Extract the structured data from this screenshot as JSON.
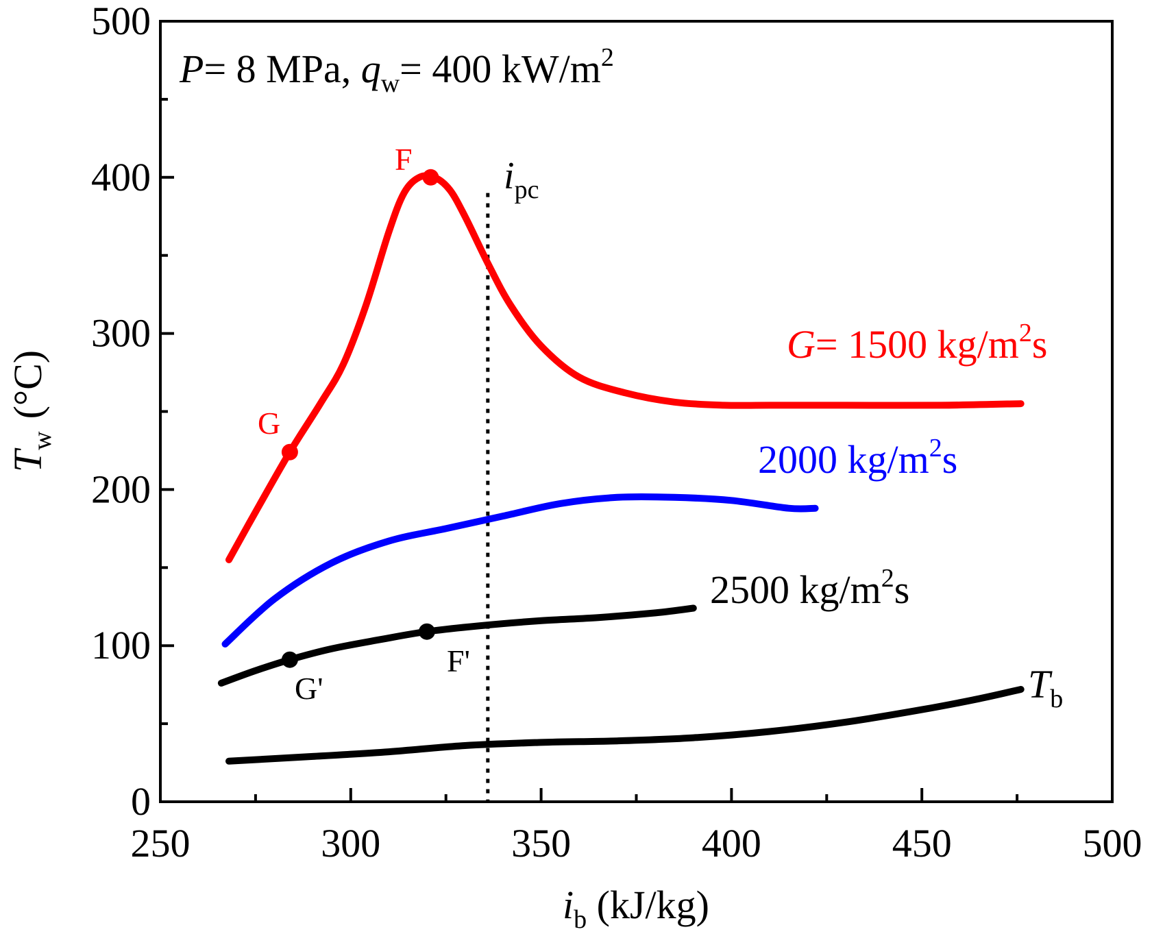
{
  "chart_data": {
    "type": "line",
    "title": "",
    "condition": {
      "p_sym": "P",
      "p_text": "= 8 MPa, ",
      "q_sym": "q",
      "q_sub": "w",
      "q_text": "= 400 kW/m",
      "q_sup": "2"
    },
    "xlabel": {
      "sym": "i",
      "sub": "b",
      "unit": " (kJ/kg)"
    },
    "ylabel": {
      "sym": "T",
      "sub": "w",
      "unit": "(°C)"
    },
    "xlim": [
      250,
      500
    ],
    "ylim": [
      0,
      500
    ],
    "x_ticks": [
      "250",
      "300",
      "350",
      "400",
      "450",
      "500"
    ],
    "y_ticks": [
      "0",
      "100",
      "200",
      "300",
      "400",
      "500"
    ],
    "ipc": {
      "x": 336,
      "sym": "i",
      "sub": "pc"
    },
    "series": [
      {
        "name": "G= 1500 kg/m2s",
        "label_sym": "G",
        "label_text": "= 1500 kg/m",
        "label_sup": "2",
        "label_tail": "s",
        "color": "#ff0000",
        "x": [
          268,
          276,
          284,
          292,
          298,
          304,
          310,
          314,
          318,
          322,
          326,
          330,
          336,
          342,
          350,
          360,
          372,
          385,
          398,
          410,
          430,
          455,
          476
        ],
        "y": [
          155,
          190,
          224,
          255,
          280,
          318,
          365,
          390,
          400,
          400,
          392,
          375,
          345,
          318,
          292,
          272,
          262,
          256,
          254,
          254,
          254,
          254,
          255
        ]
      },
      {
        "name": "2000 kg/m2s",
        "label_text": "2000 kg/m",
        "label_sup": "2",
        "label_tail": "s",
        "color": "#0000ff",
        "x": [
          267,
          280,
          295,
          310,
          325,
          340,
          355,
          370,
          385,
          400,
          415,
          422
        ],
        "y": [
          101,
          130,
          153,
          167,
          175,
          183,
          191,
          195,
          195,
          193,
          188,
          188
        ]
      },
      {
        "name": "2500 kg/m2s",
        "label_text": "2500 kg/m",
        "label_sup": "2",
        "label_tail": "s",
        "color": "#000000",
        "x": [
          266,
          275,
          284,
          295,
          308,
          320,
          335,
          350,
          365,
          380,
          390
        ],
        "y": [
          76,
          84,
          91,
          98,
          104,
          109,
          113,
          116,
          118,
          121,
          124
        ]
      },
      {
        "name": "Tb",
        "label_sym": "T",
        "label_sub": "b",
        "color": "#000000",
        "x": [
          268,
          290,
          310,
          330,
          350,
          370,
          390,
          410,
          430,
          450,
          465,
          476
        ],
        "y": [
          26,
          29,
          32,
          36,
          38,
          39,
          41,
          45,
          51,
          59,
          66,
          72
        ]
      }
    ],
    "points": [
      {
        "label": "G",
        "series": 0,
        "x": 284,
        "y": 224,
        "color": "#ff0000"
      },
      {
        "label": "F",
        "series": 0,
        "x": 321,
        "y": 400,
        "color": "#ff0000"
      },
      {
        "label": "G'",
        "series": 2,
        "x": 284,
        "y": 91,
        "color": "#000000"
      },
      {
        "label": "F'",
        "series": 2,
        "x": 320,
        "y": 109,
        "color": "#000000"
      }
    ]
  }
}
